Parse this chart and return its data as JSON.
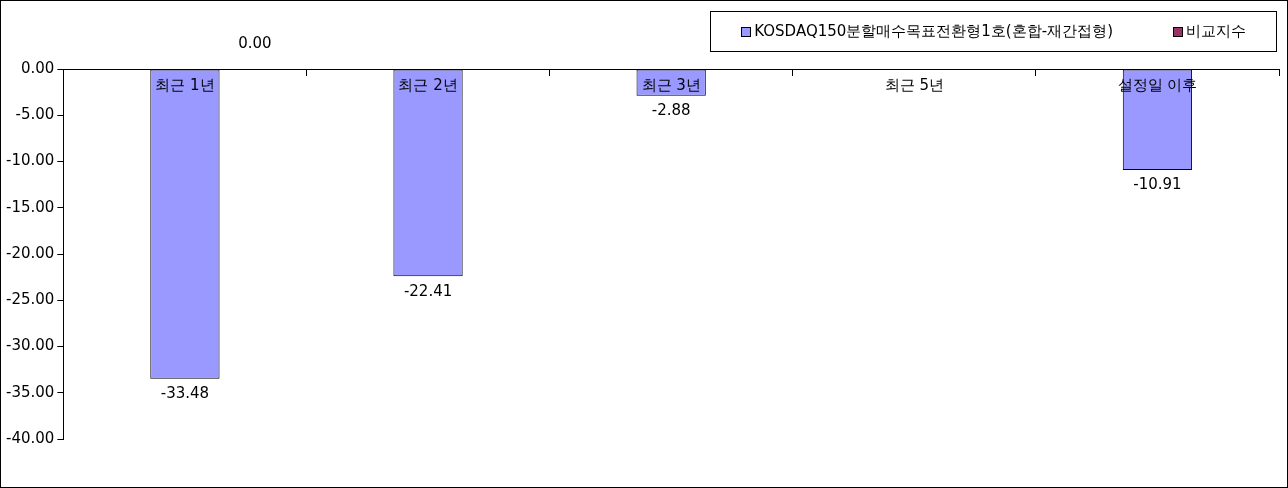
{
  "chart_data": {
    "type": "bar",
    "categories": [
      "최근 1년",
      "최근 2년",
      "최근 3년",
      "최근 5년",
      "설정일 이후"
    ],
    "series": [
      {
        "name": "KOSDAQ150분할매수목표전환형1호(혼합-재간접형)",
        "color": "#9999ff",
        "values": [
          -33.48,
          -22.41,
          -2.88,
          null,
          -10.91
        ]
      },
      {
        "name": "비교지수",
        "color": "#993366",
        "values": [
          null,
          null,
          null,
          null,
          null
        ]
      }
    ],
    "ylim": [
      -40,
      0
    ],
    "yticks": [
      {
        "value": 0,
        "label": "0.00"
      },
      {
        "value": -5,
        "label": "-5.00"
      },
      {
        "value": -10,
        "label": "-10.00"
      },
      {
        "value": -15,
        "label": "-15.00"
      },
      {
        "value": -20,
        "label": "-20.00"
      },
      {
        "value": -25,
        "label": "-25.00"
      },
      {
        "value": -30,
        "label": "-30.00"
      },
      {
        "value": -35,
        "label": "-35.00"
      },
      {
        "value": -40,
        "label": "-40.00"
      }
    ],
    "data_labels": true,
    "grid": false,
    "legend": "top right",
    "annotations": [
      "0.00"
    ]
  }
}
